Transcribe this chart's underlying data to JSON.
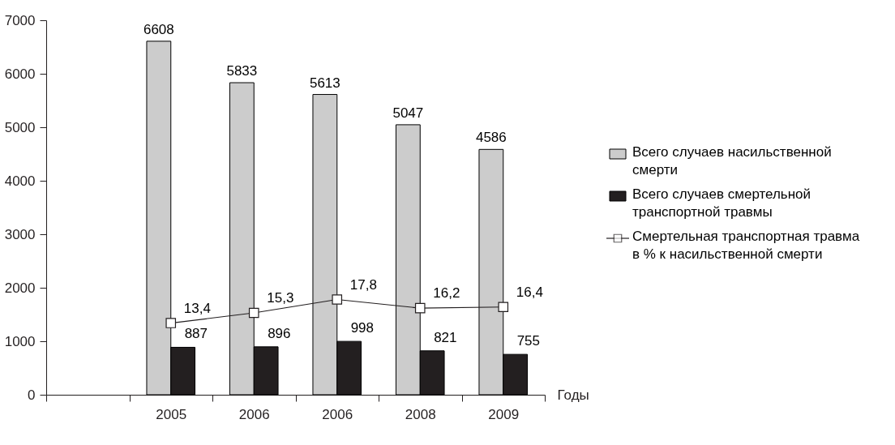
{
  "chart_data": {
    "type": "bar",
    "xlabel": "Годы",
    "categories": [
      null,
      "2005",
      "2006",
      "2006",
      "2008",
      "2009"
    ],
    "series": [
      {
        "name": "Всего случаев насильственной смерти",
        "color": "#cccccc",
        "values": [
          null,
          6608,
          5833,
          5613,
          5047,
          4586
        ]
      },
      {
        "name": "Всего случаев смертельной транспортной травмы",
        "color": "#231f20",
        "values": [
          null,
          887,
          896,
          998,
          821,
          755
        ]
      },
      {
        "name": "Смертельная транспортная травма в % к насильственной смерти",
        "type": "line",
        "axis": "y2",
        "color": "#231f20",
        "marker": "square",
        "values": [
          null,
          13.4,
          15.3,
          17.8,
          16.2,
          16.4
        ],
        "value_labels": [
          null,
          "13,4",
          "15,3",
          "17,8",
          "16,2",
          "16,4"
        ]
      }
    ],
    "ylim": [
      0,
      7000
    ],
    "yticks": [
      0,
      1000,
      2000,
      3000,
      4000,
      5000,
      6000,
      7000
    ],
    "y2lim": [
      0,
      70
    ],
    "tick_labels": "xy",
    "data_labels": true,
    "grid": false,
    "legend": "right"
  }
}
